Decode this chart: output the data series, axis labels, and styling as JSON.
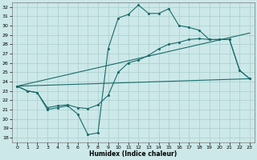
{
  "xlabel": "Humidex (Indice chaleur)",
  "xlim": [
    -0.5,
    23.5
  ],
  "ylim": [
    17.5,
    32.5
  ],
  "xticks": [
    0,
    1,
    2,
    3,
    4,
    5,
    6,
    7,
    8,
    9,
    10,
    11,
    12,
    13,
    14,
    15,
    16,
    17,
    18,
    19,
    20,
    21,
    22,
    23
  ],
  "yticks": [
    18,
    19,
    20,
    21,
    22,
    23,
    24,
    25,
    26,
    27,
    28,
    29,
    30,
    31,
    32
  ],
  "bg_color": "#cce8e8",
  "grid_color": "#aacece",
  "line_color": "#1a6b6b",
  "curve1_x": [
    0,
    1,
    2,
    3,
    4,
    5,
    6,
    7,
    8,
    9,
    10,
    11,
    12,
    13,
    14,
    15,
    16,
    17,
    18,
    19,
    20,
    21,
    22,
    23
  ],
  "curve1_y": [
    23.5,
    23.0,
    22.8,
    21.0,
    21.2,
    21.4,
    20.5,
    18.3,
    18.5,
    27.5,
    30.8,
    31.2,
    32.2,
    31.3,
    31.3,
    31.8,
    30.0,
    29.8,
    29.5,
    28.5,
    28.5,
    28.5,
    25.2,
    24.3
  ],
  "curve2_x": [
    0,
    1,
    2,
    3,
    4,
    5,
    6,
    7,
    8,
    9,
    10,
    11,
    12,
    13,
    14,
    15,
    16,
    17,
    18,
    19,
    20,
    21,
    22,
    23
  ],
  "curve2_y": [
    23.5,
    23.0,
    22.8,
    21.2,
    21.4,
    21.5,
    21.2,
    21.1,
    21.5,
    22.5,
    25.0,
    26.0,
    26.3,
    26.8,
    27.5,
    28.0,
    28.2,
    28.5,
    28.6,
    28.5,
    28.5,
    28.5,
    25.2,
    24.3
  ],
  "trend1_x": [
    0,
    23
  ],
  "trend1_y": [
    23.5,
    24.3
  ],
  "trend2_x": [
    0,
    23
  ],
  "trend2_y": [
    23.5,
    29.2
  ]
}
